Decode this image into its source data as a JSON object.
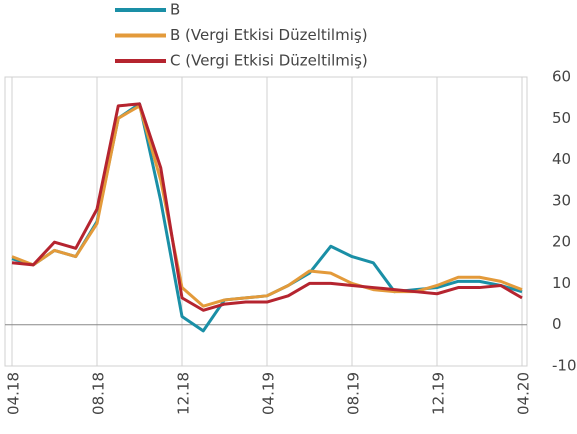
{
  "chart_data": {
    "type": "line",
    "categories": [
      "04.18",
      null,
      null,
      null,
      "08.18",
      null,
      null,
      null,
      "12.18",
      null,
      null,
      null,
      "04.19",
      null,
      null,
      null,
      "08.19",
      null,
      null,
      null,
      "12.19",
      null,
      null,
      null,
      "04.20"
    ],
    "series": [
      {
        "name": "B",
        "color": "#1a8fa6",
        "values": [
          16,
          14.5,
          18,
          16.5,
          25,
          50,
          53.5,
          30,
          2,
          -1.5,
          6,
          6.5,
          7,
          9.5,
          12.5,
          19,
          16.5,
          15,
          8,
          8.5,
          9,
          10.5,
          10.5,
          9.5,
          8
        ]
      },
      {
        "name": "B (Vergi Etkisi Düzeltilmiş)",
        "color": "#e39a3a",
        "values": [
          16.5,
          14.5,
          18,
          16.5,
          24.5,
          50,
          53,
          35,
          9,
          4.5,
          6,
          6.5,
          7,
          9.5,
          13,
          12.5,
          10,
          8.5,
          8,
          8,
          9.5,
          11.5,
          11.5,
          10.5,
          8.5
        ]
      },
      {
        "name": "C (Vergi Etkisi Düzeltilmiş)",
        "color": "#b5242f",
        "values": [
          15,
          14.5,
          20,
          18.5,
          28,
          53,
          53.5,
          38,
          6.5,
          3.5,
          5,
          5.5,
          5.5,
          7,
          10,
          10,
          9.5,
          9,
          8.5,
          8,
          7.5,
          9,
          9,
          9.5,
          6.5
        ]
      }
    ],
    "ylim": [
      -10,
      60
    ],
    "yticks": [
      -10,
      0,
      10,
      20,
      30,
      40,
      50,
      60
    ],
    "grid": true
  }
}
